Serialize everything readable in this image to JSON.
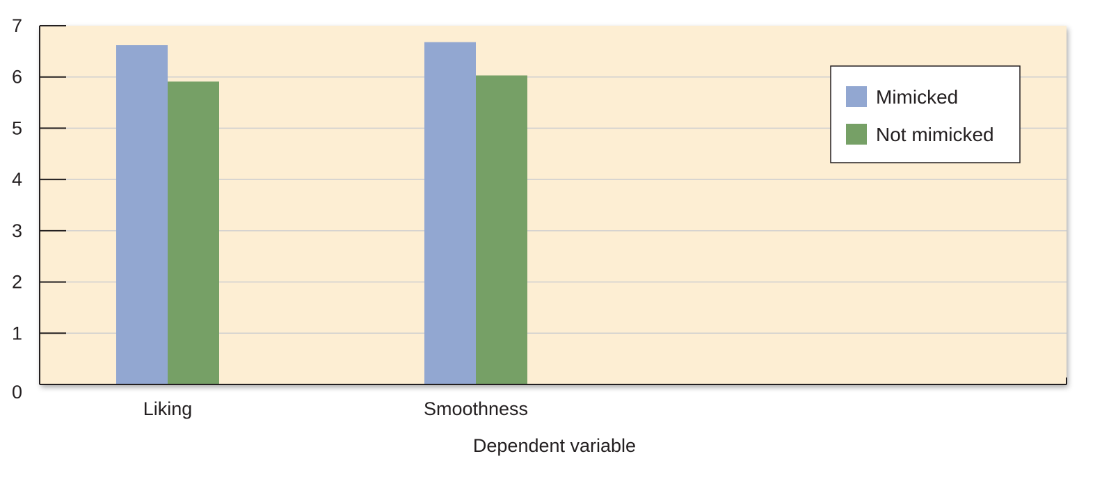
{
  "chart_data": {
    "type": "bar",
    "title": "",
    "xlabel": "Dependent variable",
    "ylabel": "",
    "categories": [
      "Liking",
      "Smoothness"
    ],
    "series": [
      {
        "name": "Mimicked",
        "values": [
          6.62,
          6.68
        ],
        "color": "#92a7d1"
      },
      {
        "name": "Not mimicked",
        "values": [
          5.91,
          6.03
        ],
        "color": "#76a066"
      }
    ],
    "ylim": [
      0,
      7
    ],
    "yticks": [
      "0",
      "1",
      "2",
      "3",
      "4",
      "5",
      "6",
      "7"
    ],
    "grid": true,
    "legend_position": "top-right",
    "plot_background": "#fdeed3"
  }
}
